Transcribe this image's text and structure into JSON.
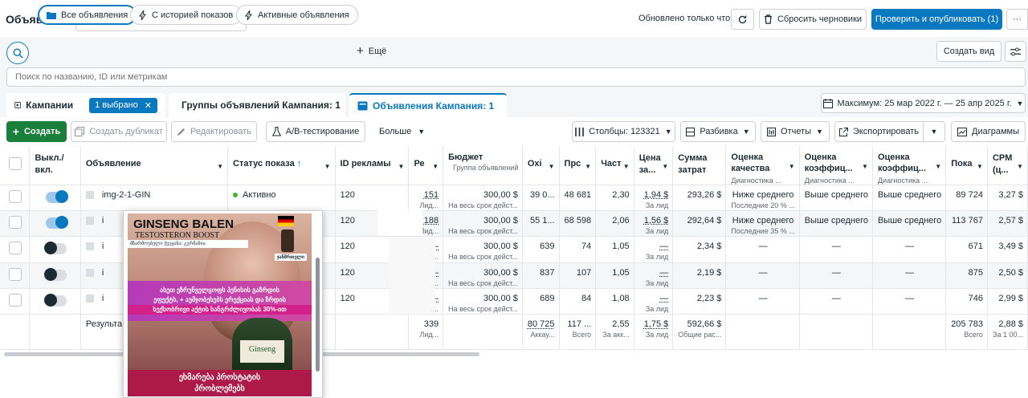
{
  "header": {
    "title": "Объявления",
    "updated": "Обновлено только что",
    "discard_label": "Сбросить черновики",
    "publish_label": "Проверить и опубликовать (1)",
    "more_label": "···"
  },
  "filters": {
    "all": "Все объявления",
    "history": "С историей показов",
    "active": "Активные объявления",
    "more": "Ещё",
    "create_view": "Создать вид"
  },
  "search": {
    "placeholder": "Поиск по названию, ID или метрикам"
  },
  "tabs": {
    "campaigns": "Кампании",
    "selected_chip": "1 выбрано",
    "adsets": "Группы объявлений Кампания: 1",
    "ads": "Объявления Кампания: 1",
    "date_range": "Максимум: 25 мар 2022 г. — 25 апр 2025 г."
  },
  "toolbar": {
    "create": "Создать",
    "duplicate": "Создать дубликат",
    "edit": "Редактировать",
    "ab_test": "A/B-тестирование",
    "more": "Больше",
    "columns": "Столбцы: 123321",
    "breakdown": "Разбивка",
    "reports": "Отчеты",
    "export": "Экспортировать",
    "charts": "Диаграммы"
  },
  "columns": {
    "toggle": "Выкл./ вкл.",
    "ad": "Объявление",
    "status": "Статус показа",
    "id": "ID рекламы",
    "results": "Ре",
    "budget": "Бюджет",
    "budget_sub": "Группа объявлений",
    "reach": "Охі",
    "impressions": "Прс",
    "frequency": "Част",
    "cpr": "Цена за...",
    "spent": "Сумма затрат",
    "quality": "Оценка качества",
    "quality_sub": "Диагностика ...",
    "engagement": "Оценка коэффиц...",
    "engagement_sub": "Диагностика ...",
    "conversion": "Оценка коэффиц...",
    "conversion_sub": "Диагностика ...",
    "shows": "Пока",
    "cpm": "CPM (ц..."
  },
  "rows": [
    {
      "name": "img-2-1-GIN",
      "status": "Активно",
      "id": "120",
      "results": "151",
      "results_sub": "Лид...",
      "budget": "300,00 $",
      "budget_sub": "На весь срок дейст...",
      "reach": "39 0...",
      "impressions": "48 681",
      "frequency": "2,30",
      "cpr": "1,94 $",
      "cpr_sub": "За лид",
      "spent": "293,26 $",
      "quality": "Ниже среднего",
      "quality_sub": "Последние 20 % ...",
      "engagement": "Выше среднего",
      "conversion": "Выше среднего",
      "shows": "89 724",
      "cpm": "3,27 $"
    },
    {
      "name": "i",
      "status": "",
      "id": "120",
      "results": "188",
      "results_sub": "Лид...",
      "budget": "300,00 $",
      "budget_sub": "На весь срок дейст...",
      "reach": "55 1...",
      "impressions": "68 598",
      "frequency": "2,06",
      "cpr": "1,56 $",
      "cpr_sub": "За лид",
      "spent": "292,64 $",
      "quality": "Ниже среднего",
      "quality_sub": "Последние 35 % ...",
      "engagement": "Выше среднего",
      "conversion": "Выше среднего",
      "shows": "113 767",
      "cpm": "2,57 $"
    },
    {
      "name": "i",
      "status": "",
      "id": "120",
      "results": "—",
      "results_sub": "Лид с...",
      "budget": "300,00 $",
      "budget_sub": "На весь срок дейст...",
      "reach": "639",
      "impressions": "74",
      "frequency": "1,05",
      "cpr": "—",
      "cpr_sub": "За лид",
      "spent": "2,34 $",
      "quality": "—",
      "quality_sub": "",
      "engagement": "—",
      "conversion": "—",
      "shows": "671",
      "cpm": "3,49 $"
    },
    {
      "name": "i",
      "status": "",
      "id": "120",
      "results": "—",
      "results_sub": "Лид с...",
      "budget": "300,00 $",
      "budget_sub": "На весь срок дейст...",
      "reach": "837",
      "impressions": "107",
      "frequency": "1,05",
      "cpr": "—",
      "cpr_sub": "За лид",
      "spent": "2,19 $",
      "quality": "—",
      "quality_sub": "",
      "engagement": "—",
      "conversion": "—",
      "shows": "875",
      "cpm": "2,50 $"
    },
    {
      "name": "i",
      "status": "",
      "id": "120",
      "results": "—",
      "results_sub": "Лид с...",
      "budget": "300,00 $",
      "budget_sub": "На весь срок дейст...",
      "reach": "689",
      "impressions": "84",
      "frequency": "1,08",
      "cpr": "—",
      "cpr_sub": "За лид",
      "spent": "2,23 $",
      "quality": "—",
      "quality_sub": "",
      "engagement": "—",
      "conversion": "—",
      "shows": "746",
      "cpm": "2,99 $"
    }
  ],
  "totals": {
    "label": "Результа",
    "results": "339",
    "results_sub": "Лид...",
    "reach": "80 725",
    "reach_sub": "Аккау...",
    "impressions": "117 ...",
    "impressions_sub": "Всего",
    "frequency": "2,55",
    "frequency_sub": "За акк...",
    "cpr": "1,75 $",
    "cpr_sub": "За лид",
    "spent": "592,66 $",
    "spent_sub": "Общие рас...",
    "shows": "205 783",
    "shows_sub": "Всего",
    "cpm": "2,88 $",
    "cpm_sub": "За 1 00..."
  },
  "ad_preview": {
    "brand": "GINSENG BALEN",
    "tagline": "TESTOSTERON BOOST",
    "band_text": "მზარმოებელი ქვეყანა: გერმანია",
    "badge": "ჯანმრთელი",
    "middle_line1": "ასეთ ეზრუნველყოფს პენისის გაზრდის",
    "middle_line2": "ეფექტს, + აუმჯობესებს ერექციას და ზრდის",
    "middle_line3": "სექსობრივი აქტის ხანგრძლივობას 30%-ით",
    "bottle_label": "Ginseng",
    "bottom_line1": "ეხმარება პროსტატის",
    "bottom_line2": "პრობლემებს"
  }
}
